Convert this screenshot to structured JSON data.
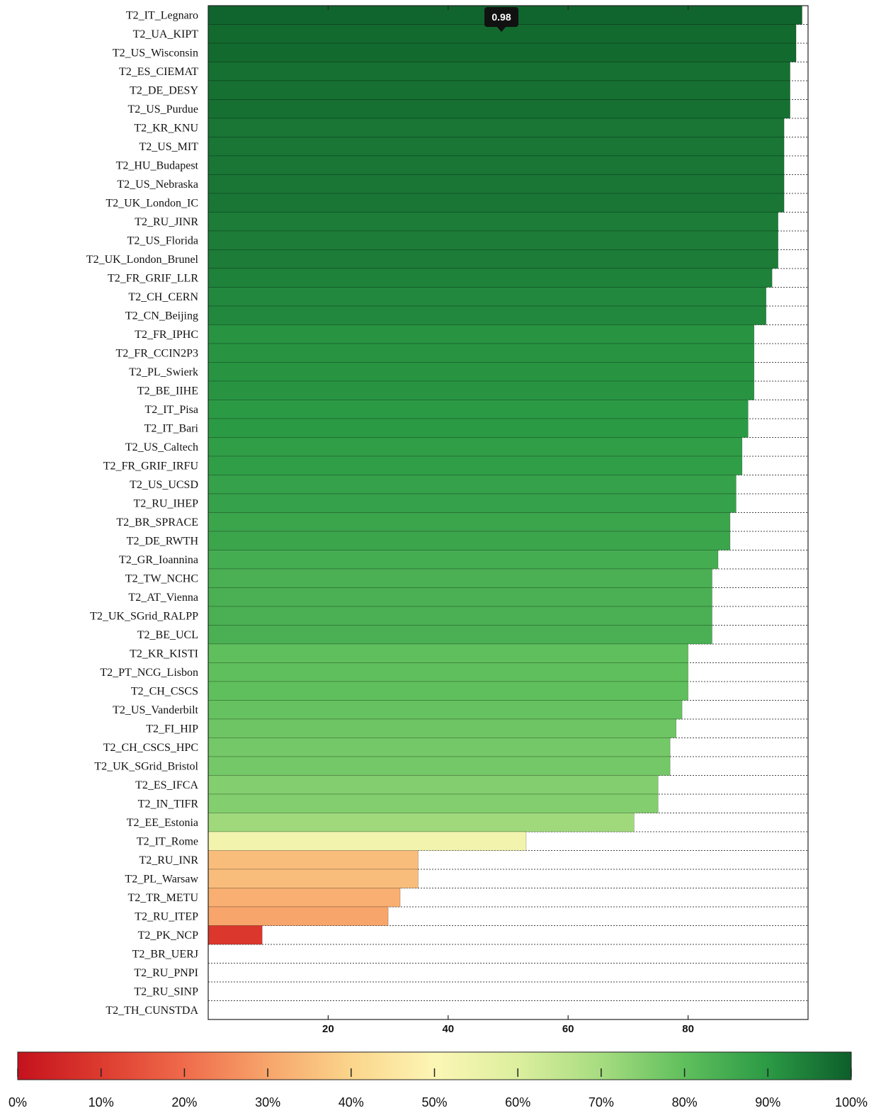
{
  "chart_data": {
    "type": "bar",
    "orientation": "horizontal",
    "categories": [
      "T2_IT_Legnaro",
      "T2_UA_KIPT",
      "T2_US_Wisconsin",
      "T2_ES_CIEMAT",
      "T2_DE_DESY",
      "T2_US_Purdue",
      "T2_KR_KNU",
      "T2_US_MIT",
      "T2_HU_Budapest",
      "T2_US_Nebraska",
      "T2_UK_London_IC",
      "T2_RU_JINR",
      "T2_US_Florida",
      "T2_UK_London_Brunel",
      "T2_FR_GRIF_LLR",
      "T2_CH_CERN",
      "T2_CN_Beijing",
      "T2_FR_IPHC",
      "T2_FR_CCIN2P3",
      "T2_PL_Swierk",
      "T2_BE_IIHE",
      "T2_IT_Pisa",
      "T2_IT_Bari",
      "T2_US_Caltech",
      "T2_FR_GRIF_IRFU",
      "T2_US_UCSD",
      "T2_RU_IHEP",
      "T2_BR_SPRACE",
      "T2_DE_RWTH",
      "T2_GR_Ioannina",
      "T2_TW_NCHC",
      "T2_AT_Vienna",
      "T2_UK_SGrid_RALPP",
      "T2_BE_UCL",
      "T2_KR_KISTI",
      "T2_PT_NCG_Lisbon",
      "T2_CH_CSCS",
      "T2_US_Vanderbilt",
      "T2_FI_HIP",
      "T2_CH_CSCS_HPC",
      "T2_UK_SGrid_Bristol",
      "T2_ES_IFCA",
      "T2_IN_TIFR",
      "T2_EE_Estonia",
      "T2_IT_Rome",
      "T2_RU_INR",
      "T2_PL_Warsaw",
      "T2_TR_METU",
      "T2_RU_ITEP",
      "T2_PK_NCP",
      "T2_BR_UERJ",
      "T2_RU_PNPI",
      "T2_RU_SINP",
      "T2_TH_CUNSTDA"
    ],
    "values": [
      99,
      98,
      98,
      97,
      97,
      97,
      96,
      96,
      96,
      96,
      96,
      95,
      95,
      95,
      94,
      93,
      93,
      91,
      91,
      91,
      91,
      90,
      90,
      89,
      89,
      88,
      88,
      87,
      87,
      85,
      84,
      84,
      84,
      84,
      80,
      80,
      80,
      79,
      78,
      77,
      77,
      75,
      75,
      71,
      53,
      35,
      35,
      32,
      30,
      9,
      0,
      0,
      0,
      0
    ],
    "xlim": [
      0,
      100
    ],
    "x_ticks": [
      "20",
      "40",
      "60",
      "80"
    ],
    "tooltip": "0.98",
    "colorbar": {
      "ticks": [
        "0%",
        "10%",
        "20%",
        "30%",
        "40%",
        "50%",
        "60%",
        "70%",
        "80%",
        "90%",
        "100%"
      ],
      "colors": [
        "#c4121d",
        "#dd3b2f",
        "#ef6b4b",
        "#f7a56b",
        "#fbd58b",
        "#fcf6b5",
        "#dcef9e",
        "#a6dc80",
        "#5fbf5c",
        "#2b9a45",
        "#0d5e2a"
      ]
    }
  }
}
